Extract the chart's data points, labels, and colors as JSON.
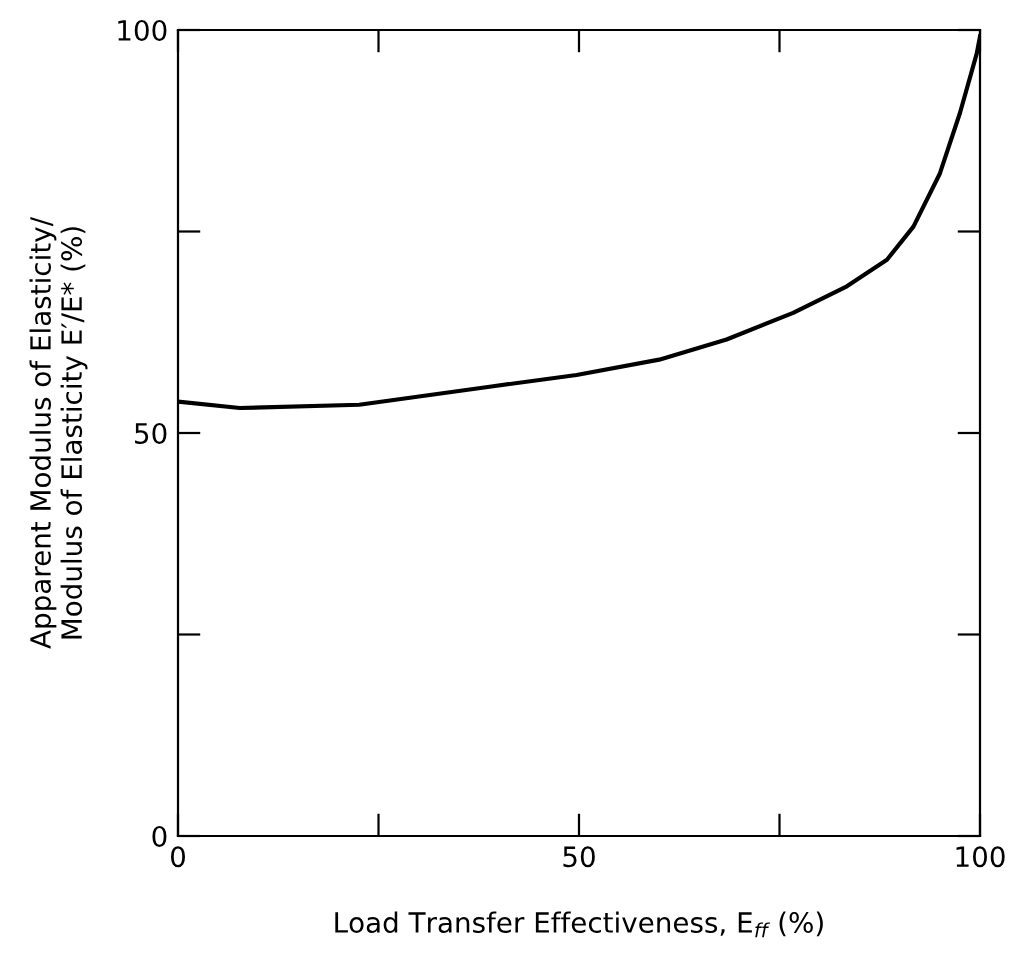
{
  "chart_data": {
    "type": "line",
    "xlabel": "Load Transfer Effectiveness, E$_{ff}$ (%)",
    "ylabel": "Apparent Modulus of Elasticity/\nModulus of Elasticity E′/E* (%)",
    "x": [
      0,
      7.7,
      22.6,
      39.3,
      49.7,
      60,
      68.4,
      76.7,
      83.4,
      88.4,
      91.7,
      95,
      97.5,
      99.6,
      100
    ],
    "series": [
      {
        "color": "#000000",
        "values": [
          53.9,
          53.1,
          53.5,
          55.8,
          57.2,
          59.1,
          61.6,
          64.9,
          68.2,
          71.5,
          75.6,
          82.2,
          89.7,
          97.1,
          99.2
        ]
      }
    ],
    "xlim": [
      0,
      100
    ],
    "ylim": [
      0,
      100
    ],
    "xticks": [
      0,
      {
        "value": 25,
        "label": null
      },
      50,
      {
        "value": 75,
        "label": null
      },
      100
    ],
    "yticks": [
      0,
      {
        "value": 25,
        "label": null
      },
      50,
      {
        "value": 75,
        "label": null
      },
      100
    ],
    "grid": false,
    "legend": false,
    "marker": "none",
    "line_style": "solid"
  }
}
